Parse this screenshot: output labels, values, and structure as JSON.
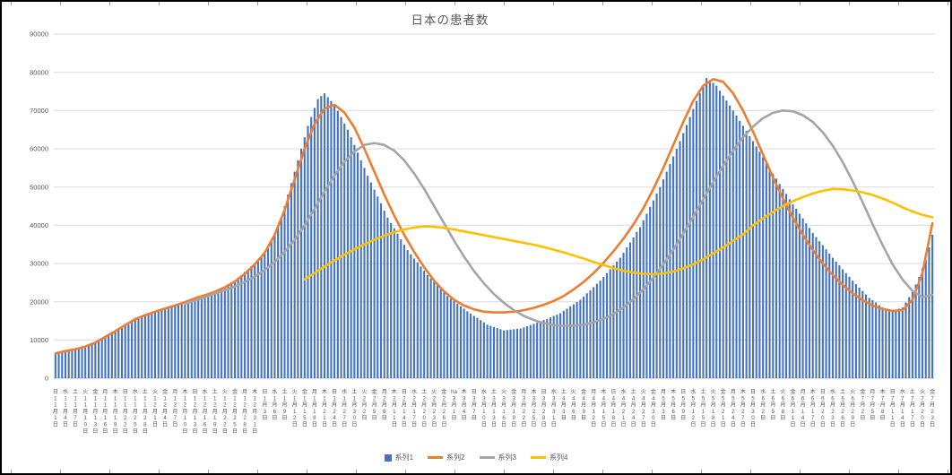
{
  "chart_data": {
    "type": "combo",
    "title": "日本の患者数",
    "legend_position": "bottom",
    "axis": {
      "y_min": 0,
      "y_max": 90000,
      "y_step": 10000,
      "y_ticks": [
        "0",
        "10000",
        "20000",
        "30000",
        "40000",
        "50000",
        "60000",
        "70000",
        "80000",
        "90000"
      ],
      "gridline_color": "#D9D9D9",
      "axisline_color": "#BFBFBF",
      "label_color": "#595959"
    },
    "stray_label": {
      "text": "ha",
      "label_index": 40
    },
    "x_labels": [
      "日11月1日",
      "水11月4日",
      "土11月7日",
      "火11月10日",
      "金11月13日",
      "月11月16日",
      "木11月19日",
      "日11月22日",
      "水11月25日",
      "土11月28日",
      "火12月1日",
      "金12月4日",
      "月12月7日",
      "木12月10日",
      "日12月13日",
      "水12月16日",
      "土12月19日",
      "火12月22日",
      "金12月25日",
      "月12月28日",
      "木12月31日",
      "日1月3日",
      "水1月6日",
      "土1月9日",
      "火1月12日",
      "金1月15日",
      "月1月18日",
      "木1月21日",
      "日1月24日",
      "水1月27日",
      "土1月30日",
      "火2月2日",
      "金2月5日",
      "月2月8日",
      "木2月11日",
      "日2月14日",
      "水2月17日",
      "土2月20日",
      "火2月23日",
      "金2月26日",
      "月3月1日",
      "木3月4日",
      "日3月7日",
      "水3月10日",
      "土3月13日",
      "火3月16日",
      "金3月19日",
      "月3月22日",
      "木3月25日",
      "日3月28日",
      "水3月31日",
      "土4月3日",
      "火4月6日",
      "金4月9日",
      "月4月12日",
      "木4月15日",
      "日4月18日",
      "水4月21日",
      "土4月24日",
      "火4月27日",
      "金4月30日",
      "月5月3日",
      "木5月6日",
      "日5月9日",
      "水5月12日",
      "土5月15日",
      "火5月18日",
      "金5月21日",
      "月5月24日",
      "木5月27日",
      "日5月30日",
      "水6月2日",
      "土6月5日",
      "火6月8日",
      "金6月11日",
      "月6月14日",
      "木6月17日",
      "日6月20日",
      "水6月23日",
      "土6月26日",
      "火6月29日",
      "金7月2日",
      "月7月5日",
      "木7月8日",
      "日7月11日",
      "水7月14日",
      "土7月17日",
      "火7月20日",
      "金7月23日"
    ],
    "series": [
      {
        "name": "系列1",
        "type": "bar",
        "color": "#4472C4",
        "start_day": 0,
        "step": 1,
        "values": [
          6500,
          6700,
          6800,
          7000,
          7200,
          7300,
          7500,
          7800,
          8200,
          8500,
          8800,
          9200,
          9500,
          10000,
          10500,
          11000,
          11500,
          12000,
          12500,
          13100,
          13600,
          14200,
          14700,
          15300,
          15800,
          16100,
          16400,
          16650,
          16900,
          17200,
          17500,
          17800,
          18000,
          18300,
          18500,
          18800,
          19000,
          19300,
          19700,
          20000,
          20300,
          20700,
          21000,
          21300,
          21500,
          21800,
          22000,
          22300,
          22500,
          23000,
          23500,
          24000,
          24500,
          25000,
          25500,
          26300,
          27000,
          27800,
          28500,
          29300,
          30000,
          31000,
          32000,
          33000,
          34000,
          36000,
          38000,
          40000,
          42000,
          45000,
          48000,
          51000,
          54000,
          57000,
          60000,
          63000,
          66000,
          68300,
          70700,
          73000,
          73800,
          74500,
          73500,
          72500,
          71500,
          69900,
          68300,
          66600,
          65000,
          63000,
          61000,
          59000,
          57000,
          55000,
          53000,
          51200,
          49300,
          47500,
          45700,
          43800,
          42000,
          40600,
          39200,
          37800,
          36300,
          34900,
          33500,
          32400,
          31300,
          30300,
          29200,
          28100,
          27000,
          26100,
          25200,
          24300,
          23300,
          22400,
          21500,
          20800,
          20200,
          19500,
          18800,
          18200,
          17500,
          16900,
          16300,
          15800,
          15200,
          14600,
          14000,
          13700,
          13400,
          13100,
          12800,
          12500,
          12600,
          12700,
          12800,
          12900,
          13000,
          13300,
          13600,
          13900,
          14200,
          14500,
          14800,
          15200,
          15500,
          15900,
          16300,
          16600,
          17000,
          17600,
          18200,
          18800,
          19300,
          19900,
          20500,
          21300,
          22200,
          23000,
          23800,
          24700,
          25500,
          26500,
          27500,
          28500,
          29500,
          30500,
          31500,
          32800,
          34200,
          35500,
          36800,
          38200,
          39500,
          41300,
          43000,
          44800,
          46500,
          48300,
          50000,
          52000,
          54000,
          56000,
          58000,
          60000,
          62000,
          64100,
          66200,
          68300,
          70400,
          72500,
          74500,
          76500,
          78500,
          77800,
          77200,
          76500,
          75200,
          73900,
          72600,
          71300,
          70000,
          68700,
          67300,
          66000,
          64700,
          63300,
          62000,
          60600,
          59200,
          57800,
          56300,
          54900,
          53500,
          52200,
          50800,
          49500,
          48200,
          46800,
          45500,
          44300,
          43000,
          41800,
          40500,
          39300,
          38000,
          36900,
          35800,
          34800,
          33700,
          32600,
          31500,
          30500,
          29500,
          28500,
          27500,
          26500,
          25500,
          24600,
          23700,
          22800,
          21900,
          21000,
          20400,
          19800,
          19100,
          18500,
          18200,
          17800,
          17500,
          17800,
          18200,
          18500,
          19800,
          21200,
          22500,
          24500,
          26500,
          28800,
          31000,
          34200,
          37500
        ]
      },
      {
        "name": "系列2",
        "type": "line",
        "color": "#ED7D31",
        "start_day": 0,
        "step": 3,
        "values": [
          6500,
          7100,
          7600,
          8300,
          9300,
          10800,
          12300,
          13900,
          15400,
          16500,
          17400,
          18200,
          19000,
          19900,
          20900,
          21700,
          22600,
          23800,
          25300,
          27300,
          29800,
          32800,
          37500,
          44000,
          52000,
          60000,
          66500,
          70500,
          71500,
          69500,
          65500,
          60000,
          54000,
          48000,
          42500,
          37500,
          33000,
          29000,
          25500,
          22700,
          20500,
          19000,
          18000,
          17400,
          17200,
          17200,
          17400,
          17800,
          18400,
          19200,
          20200,
          21500,
          23200,
          25200,
          27500,
          30200,
          33200,
          36500,
          40200,
          44500,
          49500,
          55000,
          61000,
          67000,
          72500,
          76500,
          78200,
          77500,
          74500,
          70000,
          64500,
          58500,
          52500,
          47000,
          42000,
          37500,
          33500,
          30000,
          27000,
          24400,
          22200,
          20400,
          19000,
          18100,
          17600,
          17800,
          20500,
          27500,
          40500
        ]
      },
      {
        "name": "系列3",
        "type": "line",
        "color": "#A5A5A5",
        "start_day": 39,
        "step": 3,
        "values": [
          19500,
          20300,
          21200,
          22100,
          23000,
          24000,
          25200,
          26600,
          28300,
          30400,
          33000,
          36200,
          40000,
          44300,
          48800,
          53000,
          56600,
          59300,
          61000,
          61500,
          61000,
          59500,
          57000,
          53500,
          49500,
          45000,
          40500,
          36000,
          31800,
          28000,
          24800,
          22000,
          19700,
          17800,
          16300,
          15200,
          14400,
          13900,
          13700,
          13700,
          14000,
          14600,
          15500,
          16800,
          18500,
          20700,
          23300,
          26300,
          29800,
          33600,
          37800,
          42200,
          46800,
          51300,
          55600,
          59500,
          63000,
          65800,
          68000,
          69400,
          70000,
          69800,
          68800,
          67000,
          64300,
          60800,
          56500,
          51500,
          46000,
          40300,
          34800,
          29800,
          25800,
          22800,
          21200,
          21800
        ]
      },
      {
        "name": "系列4",
        "type": "line",
        "color": "#FFC000",
        "start_day": 75,
        "step": 3,
        "values": [
          25800,
          27500,
          29200,
          30800,
          32300,
          33700,
          35000,
          36200,
          37300,
          38200,
          38900,
          39400,
          39700,
          39600,
          39300,
          38900,
          38400,
          37900,
          37400,
          36900,
          36400,
          35900,
          35400,
          34900,
          34300,
          33600,
          32900,
          32100,
          31300,
          30400,
          29600,
          28800,
          28100,
          27600,
          27300,
          27200,
          27400,
          27900,
          28700,
          29800,
          31100,
          32600,
          34200,
          35900,
          37600,
          40000,
          41800,
          43500,
          45000,
          46300,
          47400,
          48300,
          49000,
          49500,
          49400,
          49100,
          48600,
          47900,
          47000,
          45900,
          44700,
          43600,
          42700,
          42100
        ]
      }
    ]
  }
}
